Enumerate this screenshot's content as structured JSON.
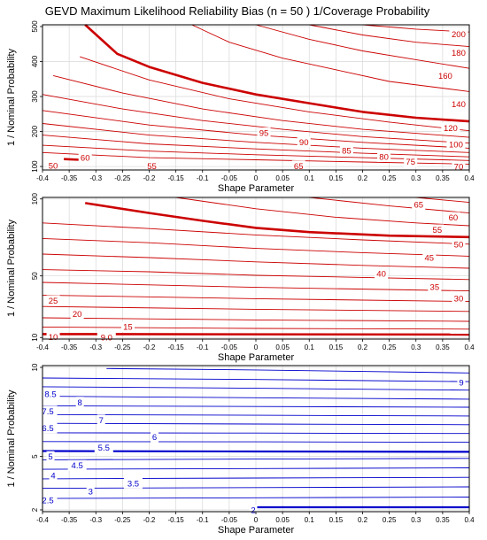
{
  "figure": {
    "title": "GEVD Maximum Likelihood Reliability Bias (n = 50 ) 1/Coverage Probability"
  },
  "chart_data": [
    {
      "type": "contour",
      "xlabel": "Shape Parameter",
      "ylabel": "1 / Nominal Probability",
      "xlim": [
        -0.4,
        0.4
      ],
      "ylim": [
        90,
        505
      ],
      "x_ticks": [
        "-0.4",
        "-0.35",
        "-0.3",
        "-0.25",
        "-0.2",
        "-0.15",
        "-0.1",
        "-0.05",
        "0",
        "0.05",
        "0.1",
        "0.15",
        "0.2",
        "0.25",
        "0.3",
        "0.35",
        "0.4"
      ],
      "y_ticks": [
        "100",
        "200",
        "300",
        "400",
        "500"
      ],
      "y_tick_values": [
        100,
        200,
        300,
        400,
        500
      ],
      "grid": true,
      "line_color": "#cc0000",
      "highlight_level": "50",
      "labels": [
        {
          "text": "50",
          "x": -0.38,
          "y": 103
        },
        {
          "text": "55",
          "x": -0.195,
          "y": 102
        },
        {
          "text": "60",
          "x": -0.32,
          "y": 126
        },
        {
          "text": "65",
          "x": 0.08,
          "y": 102
        },
        {
          "text": "70",
          "x": 0.38,
          "y": 100
        },
        {
          "text": "75",
          "x": 0.29,
          "y": 114
        },
        {
          "text": "80",
          "x": 0.24,
          "y": 128
        },
        {
          "text": "85",
          "x": 0.17,
          "y": 146
        },
        {
          "text": "90",
          "x": 0.09,
          "y": 170
        },
        {
          "text": "95",
          "x": 0.015,
          "y": 196
        },
        {
          "text": "100",
          "x": 0.375,
          "y": 163
        },
        {
          "text": "120",
          "x": 0.365,
          "y": 210
        },
        {
          "text": "140",
          "x": 0.38,
          "y": 278
        },
        {
          "text": "160",
          "x": 0.355,
          "y": 360
        },
        {
          "text": "180",
          "x": 0.38,
          "y": 425
        },
        {
          "text": "200",
          "x": 0.38,
          "y": 478
        }
      ]
    },
    {
      "type": "contour",
      "xlabel": "Shape Parameter",
      "ylabel": "1 / Nominal Probability",
      "xlim": [
        -0.4,
        0.4
      ],
      "ylim": [
        9,
        101
      ],
      "x_ticks": [
        "-0.4",
        "-0.35",
        "-0.3",
        "-0.25",
        "-0.2",
        "-0.15",
        "-0.1",
        "-0.05",
        "0",
        "0.05",
        "0.1",
        "0.15",
        "0.2",
        "0.25",
        "0.3",
        "0.35",
        "0.4"
      ],
      "y_ticks": [
        "10",
        "50",
        "100"
      ],
      "y_tick_values": [
        10,
        50,
        100
      ],
      "grid": true,
      "line_color": "#cc0000",
      "highlight_level": "10",
      "labels": [
        {
          "text": "10",
          "x": -0.38,
          "y": 10.5
        },
        {
          "text": "9.0",
          "x": -0.28,
          "y": 10.2
        },
        {
          "text": "15",
          "x": -0.24,
          "y": 17
        },
        {
          "text": "20",
          "x": -0.335,
          "y": 25.5
        },
        {
          "text": "25",
          "x": -0.38,
          "y": 34
        },
        {
          "text": "30",
          "x": 0.38,
          "y": 35.5
        },
        {
          "text": "35",
          "x": 0.335,
          "y": 43
        },
        {
          "text": "40",
          "x": 0.235,
          "y": 51.5
        },
        {
          "text": "45",
          "x": 0.325,
          "y": 62
        },
        {
          "text": "50",
          "x": 0.38,
          "y": 70.5
        },
        {
          "text": "55",
          "x": 0.34,
          "y": 80
        },
        {
          "text": "60",
          "x": 0.37,
          "y": 88
        },
        {
          "text": "65",
          "x": 0.305,
          "y": 96.5
        }
      ]
    },
    {
      "type": "contour",
      "xlabel": "Shape Parameter",
      "ylabel": "1 / Nominal Probability",
      "xlim": [
        -0.4,
        0.4
      ],
      "ylim": [
        1.9,
        10.1
      ],
      "x_ticks": [
        "-0.4",
        "-0.35",
        "-0.3",
        "-0.25",
        "-0.2",
        "-0.15",
        "-0.1",
        "-0.05",
        "0",
        "0.05",
        "0.1",
        "0.15",
        "0.2",
        "0.25",
        "0.3",
        "0.35",
        "0.4"
      ],
      "y_ticks": [
        "2",
        "5",
        "10"
      ],
      "y_tick_values": [
        2,
        5,
        10
      ],
      "grid": true,
      "line_color": "#0000cc",
      "highlight_level": "5",
      "labels": [
        {
          "text": "2",
          "x": -0.005,
          "y": 2.0
        },
        {
          "text": "2.5",
          "x": -0.39,
          "y": 2.55
        },
        {
          "text": "3",
          "x": -0.31,
          "y": 3.05
        },
        {
          "text": "3.5",
          "x": -0.23,
          "y": 3.5
        },
        {
          "text": "4",
          "x": -0.38,
          "y": 3.95
        },
        {
          "text": "4.5",
          "x": -0.335,
          "y": 4.5
        },
        {
          "text": "5",
          "x": -0.385,
          "y": 5.0
        },
        {
          "text": "5.5",
          "x": -0.285,
          "y": 5.5
        },
        {
          "text": "6",
          "x": -0.19,
          "y": 6.1
        },
        {
          "text": "6.5",
          "x": -0.39,
          "y": 6.6
        },
        {
          "text": "7",
          "x": -0.29,
          "y": 7.05
        },
        {
          "text": "7.5",
          "x": -0.39,
          "y": 7.55
        },
        {
          "text": "8",
          "x": -0.33,
          "y": 8.05
        },
        {
          "text": "8.5",
          "x": -0.385,
          "y": 8.5
        },
        {
          "text": "9",
          "x": 0.385,
          "y": 9.15
        }
      ]
    }
  ]
}
